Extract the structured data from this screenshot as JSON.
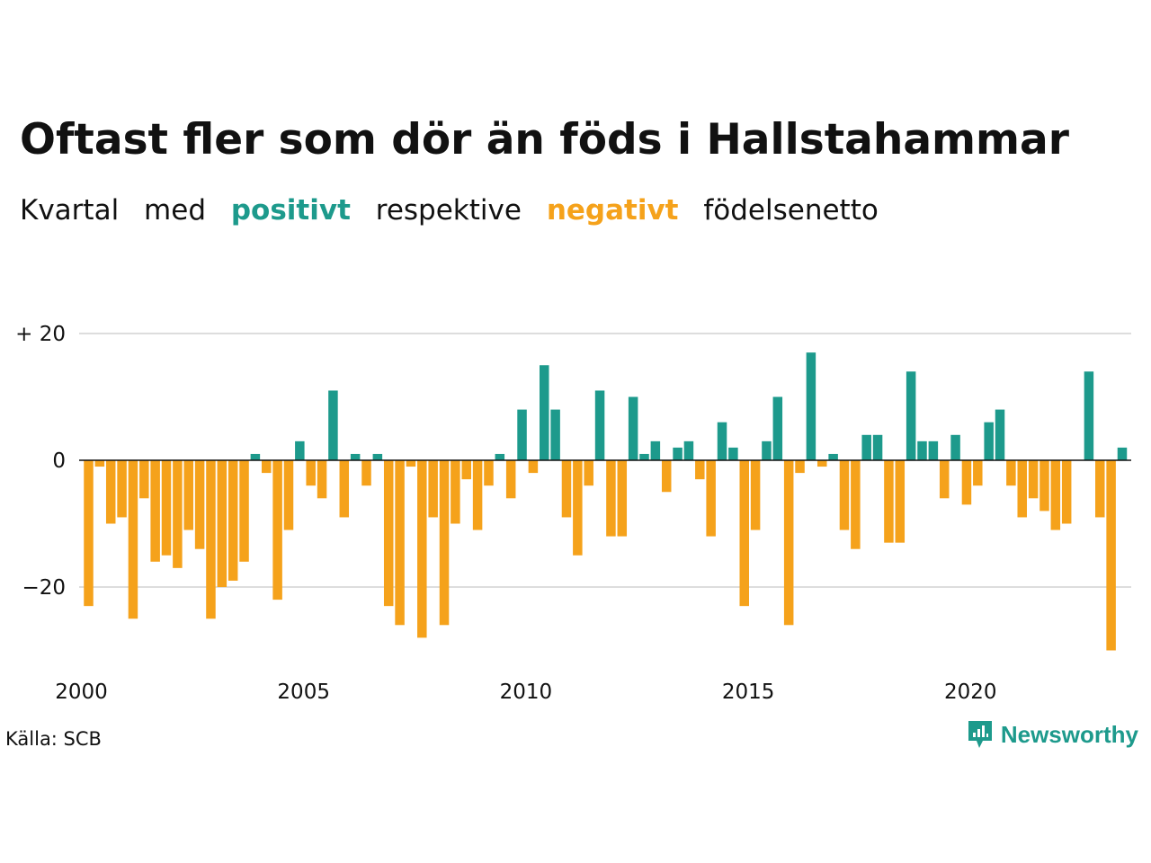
{
  "title": "Oftast fler som dör än föds i Hallstahammar",
  "subtitle": {
    "part1": "Kvartal",
    "part2": "med",
    "positive_word": "positivt",
    "part3": "respektive",
    "negative_word": "negativt",
    "part4": "födelsenetto"
  },
  "colors": {
    "positive": "#1d9a8c",
    "negative": "#f5a21b",
    "grid": "#dddddd",
    "baseline": "#111111"
  },
  "source": "Källa: SCB",
  "brand": {
    "name": "Newsworthy",
    "icon": "bar-chart-speech-icon"
  },
  "chart_data": {
    "type": "bar",
    "title": "Oftast fler som dör än föds i Hallstahammar",
    "xlabel": "",
    "ylabel": "",
    "ylim": [
      -30,
      20
    ],
    "y_ticks": [
      {
        "value": 20,
        "label": "+ 20"
      },
      {
        "value": 0,
        "label": "0"
      },
      {
        "value": -20,
        "label": "−20"
      }
    ],
    "x_ticks": [
      "2000",
      "2005",
      "2010",
      "2015",
      "2020"
    ],
    "start": "2000 Q1",
    "grid": true,
    "values": [
      -23,
      -1,
      -10,
      -9,
      -25,
      -6,
      -16,
      -15,
      -17,
      -11,
      -14,
      -25,
      -20,
      -19,
      -16,
      1,
      -2,
      -22,
      -11,
      3,
      -4,
      -6,
      11,
      -9,
      1,
      -4,
      1,
      -23,
      -26,
      -1,
      -28,
      -9,
      -26,
      -10,
      -3,
      -11,
      -4,
      1,
      -6,
      8,
      -2,
      15,
      8,
      -9,
      -15,
      -4,
      11,
      -12,
      -12,
      10,
      1,
      3,
      -5,
      2,
      3,
      -3,
      -12,
      6,
      2,
      -23,
      -11,
      3,
      10,
      -26,
      -2,
      17,
      -1,
      1,
      -11,
      -14,
      4,
      4,
      -13,
      -13,
      14,
      3,
      3,
      -6,
      4,
      -7,
      -4,
      6,
      8,
      -4,
      -9,
      -6,
      -8,
      -11,
      -10,
      0,
      14,
      -9,
      -30,
      2
    ]
  }
}
